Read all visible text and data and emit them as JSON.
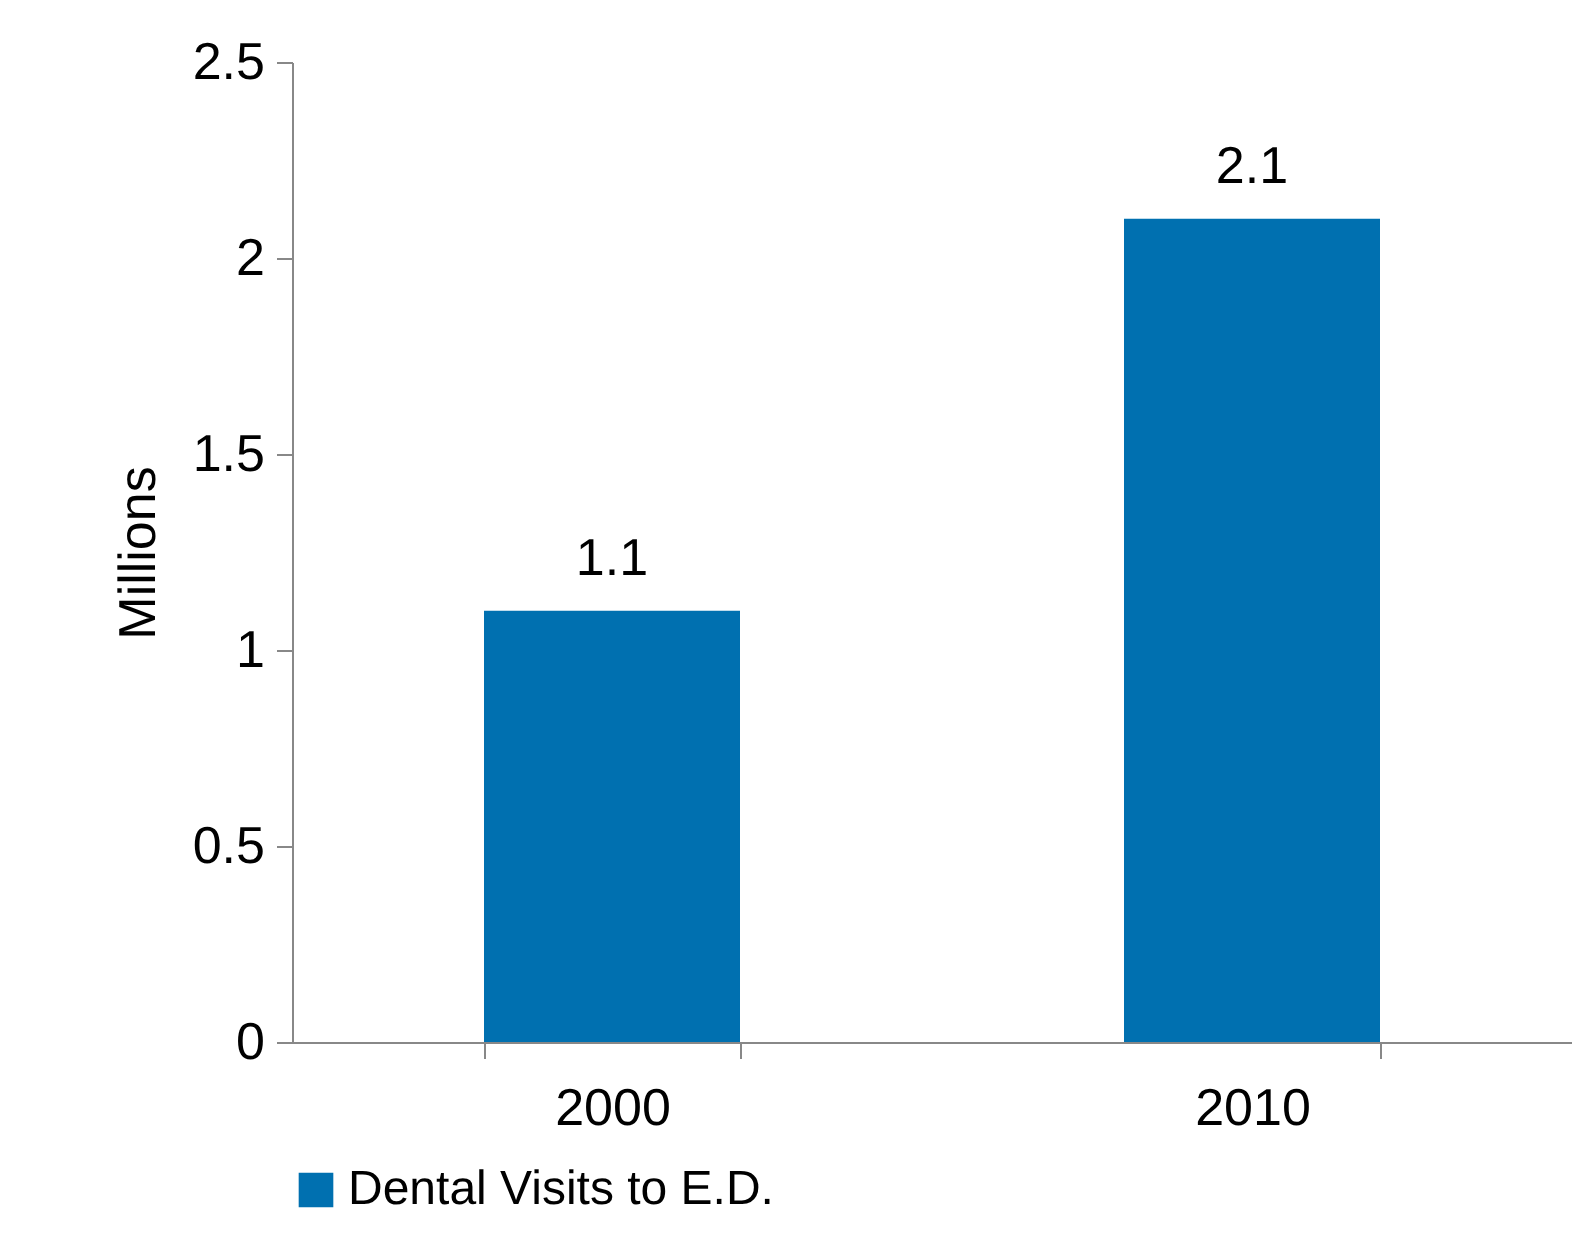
{
  "chart_data": {
    "type": "bar",
    "ylabel": "Millions",
    "categories": [
      "2000",
      "2010"
    ],
    "series": [
      {
        "name": "Dental Visits to E.D.",
        "color": "#0070b0",
        "values": [
          1.1,
          2.1
        ]
      }
    ],
    "ylim": [
      0,
      2.5
    ],
    "yticks": [
      0,
      0.5,
      1,
      1.5,
      2,
      2.5
    ],
    "grid": false,
    "legend": "bottom",
    "data_labels": true
  }
}
